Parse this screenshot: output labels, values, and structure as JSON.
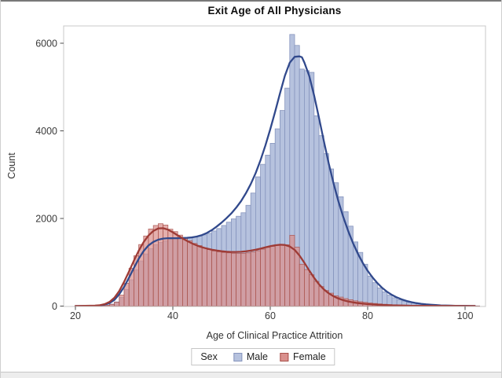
{
  "figure": {
    "title": "Exit Age of All Physicians",
    "x_axis": {
      "label": "Age of Clinical Practice Attrition",
      "ticks": [
        20,
        40,
        60,
        80,
        100
      ]
    },
    "y_axis": {
      "label": "Count",
      "ticks": [
        0,
        2000,
        4000,
        6000
      ]
    },
    "legend": {
      "title": "Sex",
      "items": [
        {
          "label": "Male"
        },
        {
          "label": "Female"
        }
      ]
    }
  },
  "colors": {
    "male_fill": "#b6c2de",
    "male_edge": "#8795bd",
    "male_curve": "#31498c",
    "female_fill": "#d9908d",
    "female_edge": "#a8514b",
    "female_curve": "#9e3b36",
    "frame": "#c8c8c8",
    "tick": "#4f4f4f",
    "tick_label": "#3a3a3a"
  },
  "chart_data": {
    "type": "bar",
    "subtype": "overlaid histograms (bin width 1 year) with kernel density curves",
    "title": "Exit Age of All Physicians",
    "xlabel": "Age of Clinical Practice Attrition",
    "ylabel": "Count",
    "xlim": [
      20,
      102.5
    ],
    "ylim": [
      0,
      6300
    ],
    "grid": false,
    "legend_position": "bottom",
    "bin_width_years": 1,
    "bin_left_edge_ages": [
      21,
      22,
      23,
      24,
      25,
      26,
      27,
      28,
      29,
      30,
      31,
      32,
      33,
      34,
      35,
      36,
      37,
      38,
      39,
      40,
      41,
      42,
      43,
      44,
      45,
      46,
      47,
      48,
      49,
      50,
      51,
      52,
      53,
      54,
      55,
      56,
      57,
      58,
      59,
      60,
      61,
      62,
      63,
      64,
      65,
      66,
      67,
      68,
      69,
      70,
      71,
      72,
      73,
      74,
      75,
      76,
      77,
      78,
      79,
      80,
      81,
      82,
      83,
      84,
      85,
      86,
      87,
      88,
      89,
      90,
      91,
      92,
      93,
      94,
      95,
      96,
      97,
      98,
      99,
      100,
      101,
      102
    ],
    "series": [
      {
        "name": "Male",
        "counts": [
          0,
          0,
          0,
          5,
          10,
          25,
          45,
          95,
          200,
          380,
          600,
          830,
          1030,
          1190,
          1310,
          1400,
          1455,
          1490,
          1525,
          1550,
          1560,
          1570,
          1575,
          1585,
          1600,
          1625,
          1660,
          1715,
          1770,
          1840,
          1915,
          1990,
          2050,
          2130,
          2300,
          2580,
          2950,
          3235,
          3445,
          3715,
          4045,
          4465,
          4975,
          6200,
          5950,
          5410,
          5375,
          5335,
          4345,
          3890,
          3480,
          3130,
          2815,
          2495,
          2155,
          1825,
          1465,
          1225,
          955,
          685,
          535,
          415,
          325,
          250,
          190,
          145,
          115,
          85,
          70,
          55,
          45,
          35,
          28,
          22,
          18,
          14,
          11,
          9,
          7,
          6,
          5,
          4
        ]
      },
      {
        "name": "Female",
        "counts": [
          0,
          0,
          0,
          5,
          10,
          20,
          40,
          90,
          250,
          520,
          865,
          1150,
          1405,
          1600,
          1760,
          1840,
          1880,
          1850,
          1755,
          1700,
          1620,
          1550,
          1490,
          1430,
          1380,
          1330,
          1290,
          1260,
          1240,
          1225,
          1215,
          1205,
          1200,
          1205,
          1215,
          1235,
          1265,
          1300,
          1340,
          1365,
          1385,
          1400,
          1400,
          1615,
          1345,
          955,
          835,
          715,
          565,
          445,
          355,
          295,
          235,
          205,
          170,
          145,
          120,
          100,
          85,
          70,
          60,
          50,
          42,
          35,
          30,
          25,
          20,
          17,
          14,
          12,
          10,
          9,
          8,
          7,
          6,
          5,
          5,
          4,
          4,
          3,
          3,
          3
        ]
      }
    ],
    "density_curves": [
      {
        "name": "Male",
        "points": [
          [
            20,
            2
          ],
          [
            22,
            4
          ],
          [
            24,
            8
          ],
          [
            25,
            15
          ],
          [
            26,
            35
          ],
          [
            27,
            70
          ],
          [
            28,
            140
          ],
          [
            29,
            270
          ],
          [
            30,
            440
          ],
          [
            31,
            650
          ],
          [
            32,
            870
          ],
          [
            33,
            1080
          ],
          [
            34,
            1255
          ],
          [
            35,
            1385
          ],
          [
            36,
            1465
          ],
          [
            37,
            1515
          ],
          [
            38,
            1540
          ],
          [
            39,
            1550
          ],
          [
            40,
            1550
          ],
          [
            41,
            1550
          ],
          [
            42,
            1552
          ],
          [
            43,
            1558
          ],
          [
            44,
            1570
          ],
          [
            45,
            1590
          ],
          [
            46,
            1622
          ],
          [
            47,
            1670
          ],
          [
            48,
            1735
          ],
          [
            49,
            1815
          ],
          [
            50,
            1905
          ],
          [
            51,
            2005
          ],
          [
            52,
            2115
          ],
          [
            53,
            2245
          ],
          [
            54,
            2395
          ],
          [
            55,
            2575
          ],
          [
            56,
            2785
          ],
          [
            57,
            3035
          ],
          [
            58,
            3330
          ],
          [
            59,
            3665
          ],
          [
            60,
            4035
          ],
          [
            61,
            4435
          ],
          [
            62,
            4855
          ],
          [
            63,
            5255
          ],
          [
            64,
            5555
          ],
          [
            65,
            5690
          ],
          [
            66,
            5700
          ],
          [
            66.5,
            5680
          ],
          [
            67,
            5560
          ],
          [
            68,
            5255
          ],
          [
            69,
            4810
          ],
          [
            70,
            4300
          ],
          [
            71,
            3770
          ],
          [
            72,
            3260
          ],
          [
            73,
            2800
          ],
          [
            74,
            2390
          ],
          [
            75,
            2030
          ],
          [
            76,
            1715
          ],
          [
            77,
            1435
          ],
          [
            78,
            1195
          ],
          [
            79,
            985
          ],
          [
            80,
            805
          ],
          [
            81,
            655
          ],
          [
            82,
            525
          ],
          [
            83,
            415
          ],
          [
            84,
            325
          ],
          [
            85,
            255
          ],
          [
            86,
            198
          ],
          [
            87,
            152
          ],
          [
            88,
            116
          ],
          [
            89,
            89
          ],
          [
            90,
            68
          ],
          [
            91,
            52
          ],
          [
            92,
            40
          ],
          [
            93,
            30
          ],
          [
            94,
            23
          ],
          [
            95,
            17
          ],
          [
            96,
            13
          ],
          [
            97,
            10
          ],
          [
            98,
            8
          ],
          [
            99,
            6
          ],
          [
            100,
            5
          ],
          [
            101,
            4
          ],
          [
            102,
            4
          ]
        ]
      },
      {
        "name": "Female",
        "points": [
          [
            20,
            2
          ],
          [
            22,
            5
          ],
          [
            24,
            10
          ],
          [
            25,
            20
          ],
          [
            26,
            45
          ],
          [
            27,
            95
          ],
          [
            28,
            190
          ],
          [
            29,
            345
          ],
          [
            30,
            555
          ],
          [
            31,
            790
          ],
          [
            32,
            1035
          ],
          [
            33,
            1265
          ],
          [
            34,
            1460
          ],
          [
            35,
            1610
          ],
          [
            36,
            1715
          ],
          [
            37,
            1772
          ],
          [
            38,
            1778
          ],
          [
            39,
            1745
          ],
          [
            40,
            1685
          ],
          [
            41,
            1615
          ],
          [
            42,
            1545
          ],
          [
            43,
            1482
          ],
          [
            44,
            1427
          ],
          [
            45,
            1382
          ],
          [
            46,
            1344
          ],
          [
            47,
            1313
          ],
          [
            48,
            1288
          ],
          [
            49,
            1268
          ],
          [
            50,
            1252
          ],
          [
            51,
            1242
          ],
          [
            52,
            1236
          ],
          [
            53,
            1236
          ],
          [
            54,
            1240
          ],
          [
            55,
            1250
          ],
          [
            56,
            1266
          ],
          [
            57,
            1288
          ],
          [
            58,
            1312
          ],
          [
            59,
            1340
          ],
          [
            60,
            1366
          ],
          [
            61,
            1388
          ],
          [
            62,
            1400
          ],
          [
            63,
            1396
          ],
          [
            64,
            1362
          ],
          [
            65,
            1285
          ],
          [
            66,
            1155
          ],
          [
            67,
            990
          ],
          [
            68,
            812
          ],
          [
            69,
            645
          ],
          [
            70,
            498
          ],
          [
            71,
            382
          ],
          [
            72,
            292
          ],
          [
            73,
            224
          ],
          [
            74,
            172
          ],
          [
            75,
            134
          ],
          [
            76,
            106
          ],
          [
            77,
            85
          ],
          [
            78,
            68
          ],
          [
            79,
            55
          ],
          [
            80,
            45
          ],
          [
            81,
            37
          ],
          [
            82,
            30
          ],
          [
            83,
            25
          ],
          [
            84,
            21
          ],
          [
            85,
            17
          ],
          [
            86,
            14
          ],
          [
            87,
            12
          ],
          [
            88,
            10
          ],
          [
            89,
            8
          ],
          [
            90,
            7
          ],
          [
            92,
            5
          ],
          [
            94,
            4
          ],
          [
            96,
            3
          ],
          [
            98,
            3
          ],
          [
            100,
            2
          ],
          [
            102,
            2
          ]
        ]
      }
    ]
  }
}
